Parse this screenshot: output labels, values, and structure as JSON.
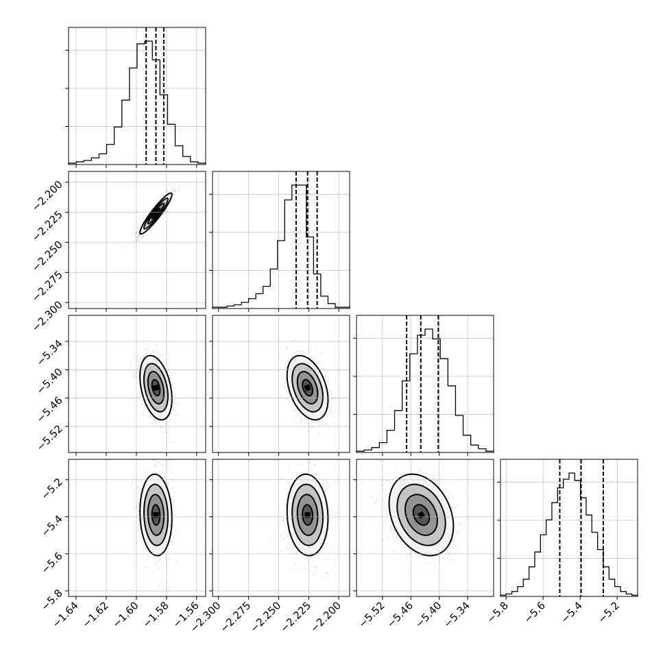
{
  "chart_data": {
    "type": "corner",
    "title": "",
    "parameter_labels": [
      "",
      "",
      "",
      ""
    ],
    "parameters": [
      {
        "range": [
          -1.645,
          -1.554
        ],
        "ticks": [
          -1.64,
          -1.62,
          -1.6,
          -1.58,
          -1.56
        ],
        "tick_labels": [
          "−1.64",
          "−1.62",
          "−1.60",
          "−1.58",
          "−1.56"
        ],
        "quantiles": [
          -1.5935,
          -1.587,
          -1.5818
        ],
        "mean": -1.587,
        "std": 0.0053,
        "histogram_counts": [
          1,
          2,
          3,
          5,
          8,
          15,
          28,
          48,
          72,
          90,
          92,
          78,
          52,
          30,
          14,
          6,
          2,
          1
        ]
      },
      {
        "range": [
          -2.305,
          -2.191
        ],
        "ticks": [
          -2.3,
          -2.275,
          -2.25,
          -2.225,
          -2.2
        ],
        "tick_labels": [
          "−2.300",
          "−2.275",
          "−2.250",
          "−2.225",
          "−2.200"
        ],
        "quantiles": [
          -2.2355,
          -2.226,
          -2.218
        ],
        "mean": -2.226,
        "std": 0.0085,
        "histogram_counts": [
          1,
          1,
          2,
          3,
          5,
          8,
          12,
          18,
          32,
          55,
          88,
          100,
          100,
          58,
          28,
          10,
          4,
          1,
          1
        ]
      },
      {
        "range": [
          -5.575,
          -5.285
        ],
        "ticks": [
          -5.52,
          -5.46,
          -5.4,
          -5.34
        ],
        "tick_labels": [
          "−5.52",
          "−5.46",
          "−5.40",
          "−5.34"
        ],
        "quantiles": [
          -5.469,
          -5.439,
          -5.402
        ],
        "mean": -5.438,
        "std": 0.034,
        "histogram_counts": [
          1,
          2,
          4,
          8,
          18,
          34,
          58,
          80,
          95,
          100,
          92,
          76,
          54,
          30,
          14,
          6,
          3,
          1
        ]
      },
      {
        "range": [
          -5.83,
          -5.09
        ],
        "ticks": [
          -5.8,
          -5.6,
          -5.4,
          -5.2
        ],
        "tick_labels": [
          "−5.8",
          "−5.6",
          "−5.4",
          "−5.2"
        ],
        "quantiles": [
          -5.51,
          -5.395,
          -5.275
        ],
        "mean": -5.39,
        "std": 0.11,
        "histogram_counts": [
          1,
          2,
          4,
          8,
          14,
          24,
          36,
          50,
          62,
          76,
          88,
          95,
          100,
          94,
          80,
          66,
          52,
          38,
          24,
          14,
          8,
          4,
          2,
          1
        ]
      }
    ],
    "correlations": [
      [
        1.0,
        0.93,
        -0.35,
        -0.08
      ],
      [
        0.93,
        1.0,
        -0.38,
        -0.08
      ],
      [
        -0.35,
        -0.38,
        1.0,
        -0.28
      ],
      [
        -0.08,
        -0.08,
        -0.28,
        1.0
      ]
    ],
    "diagonal_y_ticks": 3,
    "contour_levels": 4,
    "grid": true,
    "legend": "none"
  }
}
